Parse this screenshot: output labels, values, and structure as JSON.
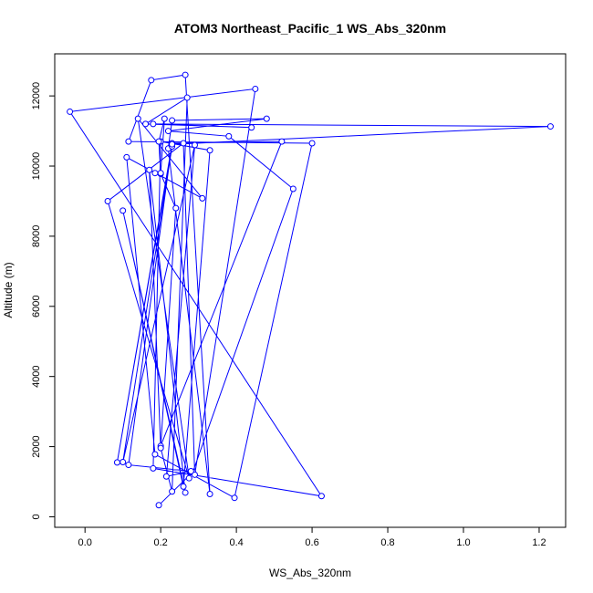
{
  "chart_data": {
    "type": "line",
    "title": "ATOM3 Northeast_Pacific_1 WS_Abs_320nm",
    "xlabel": "WS_Abs_320nm",
    "ylabel": "Altitude (m)",
    "xlim": [
      -0.08,
      1.27
    ],
    "ylim": [
      -300,
      13200
    ],
    "x_ticks": [
      0.0,
      0.2,
      0.4,
      0.6,
      0.8,
      1.0,
      1.2
    ],
    "x_tick_labels": [
      "0.0",
      "0.2",
      "0.4",
      "0.6",
      "0.8",
      "1.0",
      "1.2"
    ],
    "y_ticks": [
      0,
      2000,
      4000,
      6000,
      8000,
      10000,
      12000
    ],
    "y_tick_labels": [
      "0",
      "2000",
      "4000",
      "6000",
      "8000",
      "10000",
      "12000"
    ],
    "grid": false,
    "legend": "none",
    "series": [
      {
        "color": "#0000ff",
        "points": [
          [
            0.195,
            330
          ],
          [
            0.285,
            1280
          ],
          [
            0.55,
            9350
          ],
          [
            0.38,
            10850
          ],
          [
            0.22,
            11000
          ],
          [
            0.48,
            11350
          ],
          [
            0.23,
            11300
          ],
          [
            0.22,
            10500
          ],
          [
            0.33,
            650
          ],
          [
            0.265,
            12600
          ],
          [
            0.175,
            12450
          ],
          [
            0.115,
            10700
          ],
          [
            0.6,
            10650
          ],
          [
            0.395,
            540
          ],
          [
            0.185,
            1780
          ],
          [
            0.11,
            10250
          ],
          [
            0.31,
            9080
          ],
          [
            0.14,
            11350
          ],
          [
            0.275,
            1100
          ],
          [
            0.06,
            9000
          ],
          [
            0.26,
            10650
          ],
          [
            0.29,
            1200
          ],
          [
            0.45,
            12200
          ],
          [
            -0.04,
            11550
          ],
          [
            0.625,
            590
          ],
          [
            0.18,
            1380
          ],
          [
            0.2,
            10700
          ],
          [
            0.33,
            10450
          ],
          [
            0.26,
            860
          ],
          [
            0.1,
            8730
          ],
          [
            0.265,
            690
          ],
          [
            0.17,
            9890
          ],
          [
            0.2,
            2020
          ],
          [
            0.52,
            10700
          ],
          [
            0.23,
            10650
          ],
          [
            0.115,
            1480
          ],
          [
            0.28,
            1300
          ],
          [
            0.215,
            1150
          ],
          [
            0.29,
            10600
          ],
          [
            0.1,
            1560
          ],
          [
            0.23,
            10560
          ],
          [
            0.085,
            1550
          ],
          [
            0.23,
            10620
          ],
          [
            1.23,
            11130
          ],
          [
            0.18,
            11200
          ],
          [
            0.44,
            11100
          ],
          [
            0.16,
            11200
          ],
          [
            0.27,
            11950
          ],
          [
            0.23,
            720
          ],
          [
            0.2,
            1960
          ],
          [
            0.24,
            8800
          ],
          [
            0.2,
            9780
          ],
          [
            0.21,
            11350
          ],
          [
            0.195,
            10700
          ],
          [
            0.2,
            9800
          ],
          [
            0.185,
            9800
          ]
        ]
      }
    ]
  }
}
